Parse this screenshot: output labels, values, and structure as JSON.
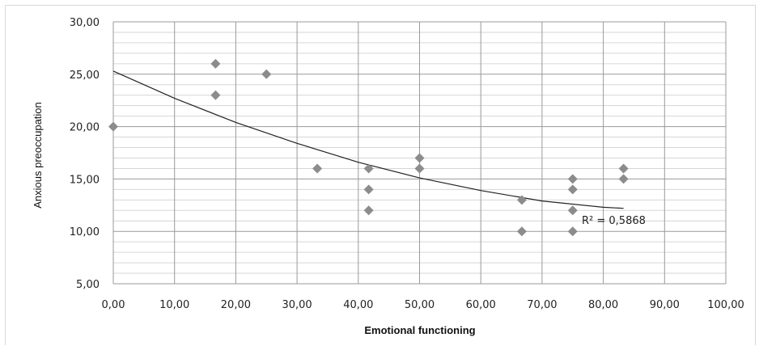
{
  "chart_data": {
    "type": "scatter",
    "title": "",
    "xlabel": "Emotional functioning",
    "ylabel": "Anxious preoccupation",
    "xlim": [
      0,
      100
    ],
    "ylim": [
      5,
      30
    ],
    "x_ticks": [
      "0,00",
      "10,00",
      "20,00",
      "30,00",
      "40,00",
      "50,00",
      "60,00",
      "70,00",
      "80,00",
      "90,00",
      "100,00"
    ],
    "y_ticks": [
      "5,00",
      "10,00",
      "15,00",
      "20,00",
      "25,00",
      "30,00"
    ],
    "grid": true,
    "marker": "diamond",
    "marker_color": "#8c8c8c",
    "points": [
      {
        "x": 0,
        "y": 20
      },
      {
        "x": 16.7,
        "y": 26
      },
      {
        "x": 16.7,
        "y": 23
      },
      {
        "x": 25,
        "y": 25
      },
      {
        "x": 33.3,
        "y": 16
      },
      {
        "x": 41.7,
        "y": 16
      },
      {
        "x": 41.7,
        "y": 14
      },
      {
        "x": 41.7,
        "y": 12
      },
      {
        "x": 50,
        "y": 17
      },
      {
        "x": 50,
        "y": 16
      },
      {
        "x": 66.7,
        "y": 13
      },
      {
        "x": 66.7,
        "y": 10
      },
      {
        "x": 75,
        "y": 15
      },
      {
        "x": 75,
        "y": 14
      },
      {
        "x": 75,
        "y": 12
      },
      {
        "x": 75,
        "y": 10
      },
      {
        "x": 83.3,
        "y": 16
      },
      {
        "x": 83.3,
        "y": 15
      }
    ],
    "trendline": {
      "type": "polynomial",
      "x": [
        0,
        10,
        20,
        30,
        40,
        50,
        60,
        70,
        80,
        83.3
      ],
      "y": [
        25.3,
        22.7,
        20.4,
        18.4,
        16.6,
        15.1,
        13.9,
        12.9,
        12.3,
        12.2
      ],
      "r2_label": "R² = 0,5868"
    }
  }
}
